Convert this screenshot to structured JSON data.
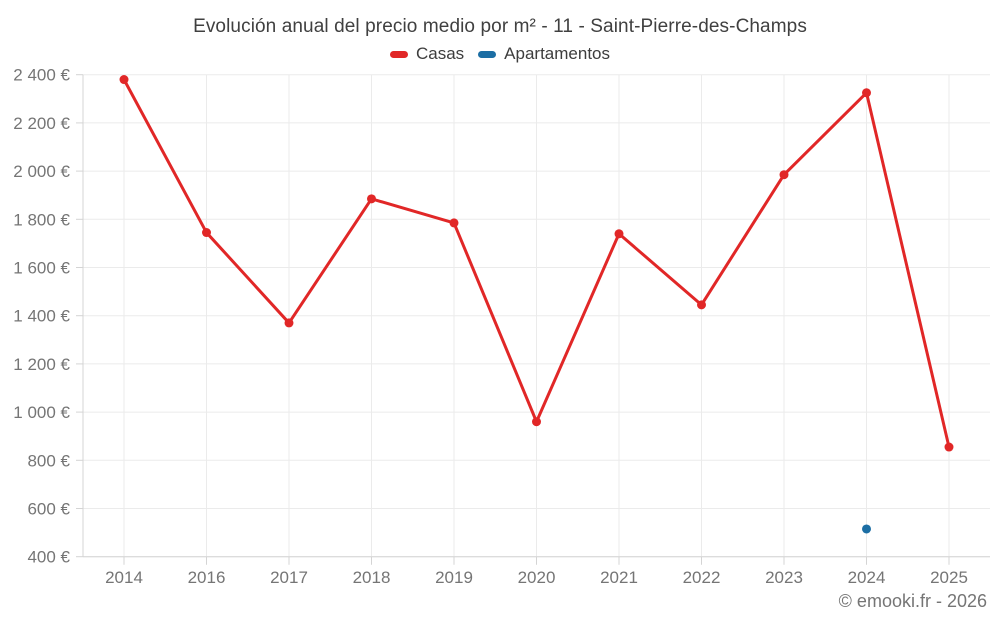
{
  "chart": {
    "title": "Evolución anual del precio medio por m² - 11 - Saint-Pierre-des-Champs",
    "attribution": "© emooki.fr - 2026"
  },
  "colors": {
    "casas": "#e12727",
    "apartamentos": "#1c6ea4",
    "gridline": "#ebebeb",
    "axis_line": "#d4d4d4",
    "axis_text": "#757575",
    "title_text": "#404040",
    "background": "#ffffff"
  },
  "chart_data": {
    "type": "line",
    "title": "Evolución anual del precio medio por m² - 11 - Saint-Pierre-des-Champs",
    "xlabel": "",
    "ylabel": "",
    "categories": [
      "2014",
      "2016",
      "2017",
      "2018",
      "2019",
      "2020",
      "2021",
      "2022",
      "2023",
      "2024",
      "2025"
    ],
    "series": [
      {
        "name": "Casas",
        "color": "#e12727",
        "values": [
          2380,
          1745,
          1370,
          1885,
          1785,
          960,
          1740,
          1445,
          1985,
          2325,
          855
        ]
      },
      {
        "name": "Apartamentos",
        "color": "#1c6ea4",
        "values": [
          null,
          null,
          null,
          null,
          null,
          null,
          null,
          null,
          null,
          515,
          null
        ]
      }
    ],
    "ylim": [
      400,
      2400
    ],
    "ytick_step": 200,
    "ytick_values": [
      400,
      600,
      800,
      1000,
      1200,
      1400,
      1600,
      1800,
      2000,
      2200,
      2400
    ],
    "ytick_labels": [
      "400 €",
      "600 €",
      "800 €",
      "1 000 €",
      "1 200 €",
      "1 400 €",
      "1 600 €",
      "1 800 €",
      "2 000 €",
      "2 200 €",
      "2 400 €"
    ],
    "grid": true,
    "legend_position": "top-center"
  }
}
